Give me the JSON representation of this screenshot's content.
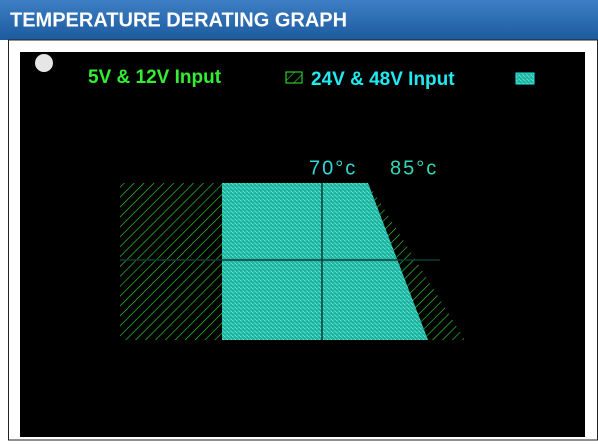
{
  "header": {
    "title": "TEMPERATURE DERATING GRAPH"
  },
  "legend": [
    "5V & 12V Input",
    "24V & 48V Input"
  ],
  "annotations": [
    "70°c",
    "85°c"
  ]
}
